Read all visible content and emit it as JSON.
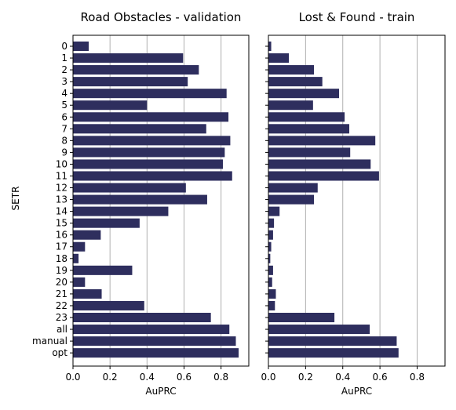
{
  "chart_data": {
    "type": "bar",
    "orientation": "horizontal",
    "bar_color": "#2e2e5e",
    "grid": "x-only",
    "ylabel": "SETR",
    "categories": [
      "0",
      "1",
      "2",
      "3",
      "4",
      "5",
      "6",
      "7",
      "8",
      "9",
      "10",
      "11",
      "12",
      "13",
      "14",
      "15",
      "16",
      "17",
      "18",
      "19",
      "20",
      "21",
      "22",
      "23",
      "all",
      "manual",
      "opt"
    ],
    "panels": [
      {
        "title": "Road Obstacles - validation",
        "xlabel": "AuPRC",
        "xlim": [
          0,
          0.95
        ],
        "xticks": [
          "0.0",
          "0.2",
          "0.4",
          "0.6",
          "0.8"
        ],
        "values": [
          0.085,
          0.595,
          0.68,
          0.62,
          0.83,
          0.4,
          0.84,
          0.72,
          0.85,
          0.82,
          0.81,
          0.86,
          0.61,
          0.725,
          0.515,
          0.36,
          0.15,
          0.065,
          0.03,
          0.32,
          0.065,
          0.155,
          0.385,
          0.745,
          0.845,
          0.88,
          0.895
        ]
      },
      {
        "title": "Lost & Found - train",
        "xlabel": "AuPRC",
        "xlim": [
          0,
          0.95
        ],
        "xticks": [
          "0.0",
          "0.2",
          "0.4",
          "0.6",
          "0.8"
        ],
        "values": [
          0.015,
          0.11,
          0.245,
          0.29,
          0.38,
          0.24,
          0.41,
          0.435,
          0.575,
          0.44,
          0.55,
          0.595,
          0.265,
          0.245,
          0.06,
          0.03,
          0.025,
          0.015,
          0.01,
          0.025,
          0.02,
          0.04,
          0.035,
          0.355,
          0.545,
          0.69,
          0.7
        ]
      }
    ]
  }
}
